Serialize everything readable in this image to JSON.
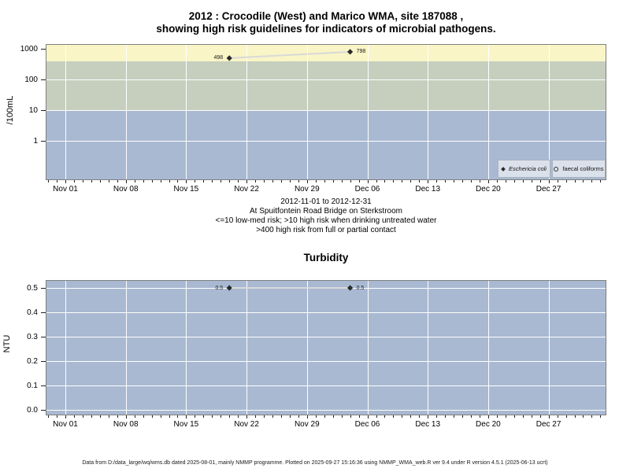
{
  "title": {
    "line1": "2012 : Crocodile (West) and Marico WMA, site 187088 ,",
    "line2": "showing high risk guidelines for indicators of microbial pathogens."
  },
  "colors": {
    "band_high_contact": "#f9f5c6",
    "band_high_drinking": "#c6cebe",
    "band_low_med": "#a9b9d2",
    "plot_blue": "#a9b9d2",
    "grid": "#ffffff",
    "legend_bg": "#dbe1eb",
    "legend_border": "#aab3c0",
    "marker": "#2a2a2a",
    "series_line": "#d9d9d9"
  },
  "microbial_chart": {
    "ylabel": "/100mL",
    "y_tick_labels": [
      "1000",
      "100",
      "10",
      "1"
    ],
    "x_tick_labels": [
      "Nov 01",
      "Nov 08",
      "Nov 15",
      "Nov 22",
      "Nov 29",
      "Dec 06",
      "Dec 13",
      "Dec 20",
      "Dec 27"
    ],
    "legend": [
      {
        "label": "Eschericia coli",
        "marker": "filled-diamond"
      },
      {
        "label": "faecal coliforms",
        "marker": "open-circle"
      }
    ],
    "subtitle_lines": [
      "2012-11-01 to 2012-12-31",
      "At Spuitfontein Road Bridge on Sterkstroom",
      "<=10 low-med risk; >10 high risk when drinking untreated water",
      ">400 high risk from full or partial contact"
    ]
  },
  "turbidity_chart": {
    "title": "Turbidity",
    "ylabel": "NTU",
    "y_tick_labels": [
      "0.5",
      "0.4",
      "0.3",
      "0.2",
      "0.1",
      "0.0"
    ],
    "x_tick_labels": [
      "Nov 01",
      "Nov 08",
      "Nov 15",
      "Nov 22",
      "Nov 29",
      "Dec 06",
      "Dec 13",
      "Dec 20",
      "Dec 27"
    ]
  },
  "footer": "Data from D:/data_large/wq/wms.db dated 2025-08-01, mainly NMMP programme. Plotted on 2025-09-27 15:16:36 using NMMP_WMA_web.R ver 9.4 under R version 4.5.1 (2025-06-13 ucrt)",
  "chart_data": [
    {
      "type": "scatter",
      "title": "2012 : Crocodile (West) and Marico WMA, site 187088 , showing high risk guidelines for indicators of microbial pathogens.",
      "date_range": "2012-11-01 to 2012-12-31",
      "location": "At Spuitfontein Road Bridge on Sterkstroom",
      "ylabel": "/100mL",
      "yscale": "log",
      "ylim": [
        0.05,
        1300
      ],
      "x_tick_labels": [
        "Nov 01",
        "Nov 08",
        "Nov 15",
        "Nov 22",
        "Nov 29",
        "Dec 06",
        "Dec 13",
        "Dec 20",
        "Dec 27"
      ],
      "grid": true,
      "legend_position": "bottom-right",
      "series": [
        {
          "name": "Eschericia coli",
          "marker": "filled-diamond",
          "points": [
            {
              "date": "2012-11-20",
              "value": 498,
              "label": "498",
              "label_side": "left"
            },
            {
              "date": "2012-12-04",
              "value": 798,
              "label": "798",
              "label_side": "right"
            }
          ]
        },
        {
          "name": "faecal coliforms",
          "marker": "open-circle",
          "points": []
        }
      ],
      "risk_bands": [
        {
          "range": ">400",
          "description": ">400 high risk from full or partial contact",
          "color": "#f9f5c6"
        },
        {
          "range": "10-400",
          "description": ">10 high risk when drinking untreated water",
          "color": "#c6cebe"
        },
        {
          "range": "<=10",
          "description": "<=10 low-med risk",
          "color": "#a9b9d2"
        }
      ]
    },
    {
      "type": "scatter",
      "title": "Turbidity",
      "ylabel": "NTU",
      "ylim": [
        0,
        0.5
      ],
      "x_tick_labels": [
        "Nov 01",
        "Nov 08",
        "Nov 15",
        "Nov 22",
        "Nov 29",
        "Dec 06",
        "Dec 13",
        "Dec 20",
        "Dec 27"
      ],
      "grid": true,
      "series": [
        {
          "name": "Turbidity",
          "marker": "filled-diamond",
          "points": [
            {
              "date": "2012-11-20",
              "value": 0.5,
              "label": "0.5",
              "label_side": "left"
            },
            {
              "date": "2012-12-04",
              "value": 0.5,
              "label": "0.5",
              "label_side": "right"
            }
          ]
        }
      ]
    }
  ]
}
